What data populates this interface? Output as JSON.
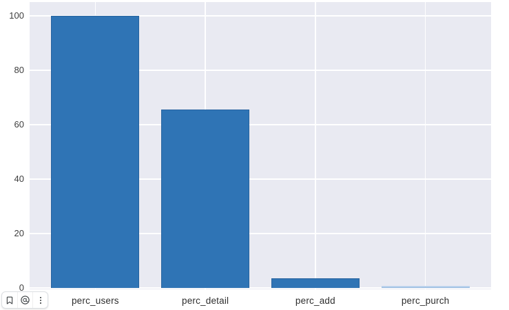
{
  "chart_data": {
    "type": "bar",
    "categories": [
      "perc_users",
      "perc_detail",
      "perc_add",
      "perc_purch"
    ],
    "values": [
      100,
      65.5,
      3.5,
      0.5
    ],
    "title": "",
    "xlabel": "",
    "ylabel": "",
    "ylim": [
      0,
      105
    ],
    "yticks": [
      "0",
      "20",
      "40",
      "60",
      "80",
      "100"
    ],
    "ytick_values": [
      0,
      20,
      40,
      60,
      80,
      100
    ],
    "grid": true,
    "legend": false,
    "colors": {
      "plot_bg": "#e9eaf2",
      "gridline": "#ffffff",
      "bar_fill": "#2f74b5",
      "bar_edge": "#27639f",
      "tiny_bar_top": "#cfdff2",
      "tiny_bar_bottom": "#8fb5de",
      "tick_text": "#3d3d3d",
      "label_text": "#2e2e2e"
    }
  },
  "toolbar": {
    "icons": [
      {
        "name": "bookmark"
      },
      {
        "name": "at-circle"
      },
      {
        "name": "kebab-menu"
      }
    ]
  }
}
